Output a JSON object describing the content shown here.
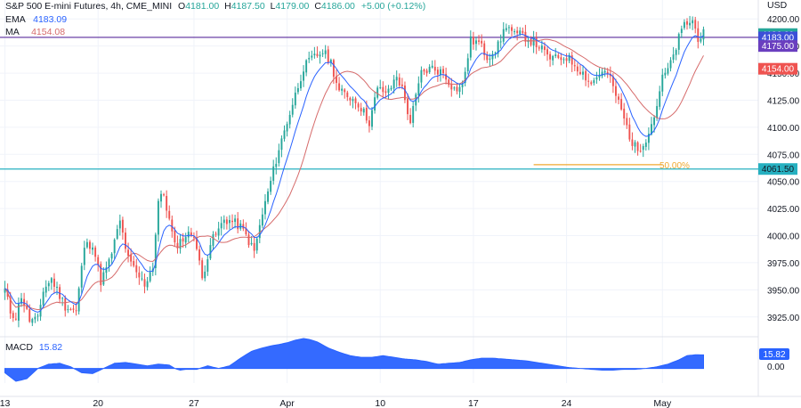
{
  "header": {
    "symbol": "S&P 500 E-mini Futures, 4h, CME_MINI",
    "ohlc": [
      {
        "label": "O",
        "value": "4181.00"
      },
      {
        "label": "H",
        "value": "4187.50"
      },
      {
        "label": "L",
        "value": "4179.00"
      },
      {
        "label": "C",
        "value": "4186.00"
      }
    ],
    "change": "+5.00 (+0.12%)",
    "ema_label": "EMA",
    "ema_value": "4183.09",
    "ma_label": "MA",
    "ma_value": "4154.08"
  },
  "currency": "USD",
  "macd": {
    "label": "MACD",
    "value": "15.82",
    "badge": "15.82",
    "zero_label": "0.00"
  },
  "price_badges": [
    {
      "text": "4186.00",
      "value": 4186,
      "color": "#26a69a"
    },
    {
      "text": "4183.00",
      "value": 4183,
      "color": "#3c4fd8"
    },
    {
      "text": "4175.00",
      "value": 4175,
      "color": "#6a3fbf"
    },
    {
      "text": "4154.00",
      "value": 4154,
      "color": "#ef5350"
    }
  ],
  "level_labels": [
    {
      "text": "4061.50",
      "value": 4061.5
    }
  ],
  "fib_label": "50.00%",
  "colors": {
    "up": "#26a69a",
    "down": "#ef5350",
    "ema": "#2962ff",
    "ma": "#d66b6b",
    "macd": "#2962ff",
    "fib": "#f0a830",
    "res": "#5b2c9c",
    "sup": "#26b0c0"
  },
  "chart_data": {
    "type": "candlestick",
    "title": "S&P 500 E-mini Futures, 4h, CME_MINI",
    "ylim": [
      3910,
      4215
    ],
    "yticks": [
      3925,
      3950,
      3975,
      4000,
      4025,
      4050,
      4075,
      4100,
      4125,
      4150,
      4175,
      4200
    ],
    "ytick_labels": [
      "3925.00",
      "3950.00",
      "3975.00",
      "4000.00",
      "4025.00",
      "4050.00",
      "4075.00",
      "4100.00",
      "4125.00",
      "4150.00",
      "4175.00",
      "4200.00"
    ],
    "xtick_labels": [
      "13",
      "20",
      "27",
      "Apr",
      "10",
      "17",
      "24",
      "May"
    ],
    "xtick_positions": [
      0,
      34,
      69,
      103,
      137,
      171,
      205,
      240
    ],
    "close_anchors": [
      [
        0,
        3950
      ],
      [
        2,
        3930
      ],
      [
        4,
        3925
      ],
      [
        6,
        3945
      ],
      [
        9,
        3922
      ],
      [
        12,
        3922
      ],
      [
        14,
        3950
      ],
      [
        17,
        3960
      ],
      [
        20,
        3945
      ],
      [
        22,
        3935
      ],
      [
        26,
        3930
      ],
      [
        29,
        3990
      ],
      [
        32,
        3993
      ],
      [
        35,
        3958
      ],
      [
        38,
        3975
      ],
      [
        42,
        4013
      ],
      [
        45,
        3978
      ],
      [
        48,
        3965
      ],
      [
        51,
        3955
      ],
      [
        54,
        3972
      ],
      [
        56,
        4032
      ],
      [
        58,
        4038
      ],
      [
        62,
        3990
      ],
      [
        66,
        4000
      ],
      [
        69,
        4002
      ],
      [
        72,
        3960
      ],
      [
        75,
        3993
      ],
      [
        78,
        4005
      ],
      [
        80,
        4015
      ],
      [
        83,
        4013
      ],
      [
        86,
        4008
      ],
      [
        88,
        4000
      ],
      [
        91,
        3985
      ],
      [
        94,
        4020
      ],
      [
        97,
        4050
      ],
      [
        100,
        4080
      ],
      [
        103,
        4105
      ],
      [
        106,
        4130
      ],
      [
        109,
        4155
      ],
      [
        112,
        4163
      ],
      [
        116,
        4170
      ],
      [
        119,
        4160
      ],
      [
        122,
        4133
      ],
      [
        126,
        4128
      ],
      [
        129,
        4122
      ],
      [
        133,
        4105
      ],
      [
        136,
        4135
      ],
      [
        140,
        4132
      ],
      [
        143,
        4148
      ],
      [
        145,
        4135
      ],
      [
        148,
        4105
      ],
      [
        152,
        4150
      ],
      [
        156,
        4155
      ],
      [
        160,
        4150
      ],
      [
        164,
        4135
      ],
      [
        167,
        4138
      ],
      [
        170,
        4180
      ],
      [
        173,
        4178
      ],
      [
        176,
        4165
      ],
      [
        180,
        4175
      ],
      [
        183,
        4195
      ],
      [
        186,
        4185
      ],
      [
        189,
        4185
      ],
      [
        192,
        4180
      ],
      [
        195,
        4175
      ],
      [
        198,
        4165
      ],
      [
        201,
        4163
      ],
      [
        205,
        4165
      ],
      [
        208,
        4158
      ],
      [
        211,
        4150
      ],
      [
        214,
        4140
      ],
      [
        217,
        4150
      ],
      [
        220,
        4150
      ],
      [
        223,
        4130
      ],
      [
        226,
        4108
      ],
      [
        229,
        4085
      ],
      [
        231,
        4079
      ],
      [
        234,
        4090
      ],
      [
        237,
        4110
      ],
      [
        240,
        4145
      ],
      [
        243,
        4158
      ],
      [
        246,
        4182
      ],
      [
        248,
        4195
      ],
      [
        251,
        4198
      ],
      [
        253,
        4183
      ],
      [
        255,
        4186
      ]
    ],
    "n_candles": 256,
    "ema_last": 4183.09,
    "ma_last": 4154.08,
    "horizontal_levels": [
      {
        "value": 4183,
        "label": "4183.00",
        "style": "resistance"
      },
      {
        "value": 4061.5,
        "label": "4061.50",
        "style": "support"
      }
    ],
    "fib_level": {
      "value": 4065.5,
      "label": "50.00%",
      "from_bar": 193,
      "to_bar": 240
    },
    "macd": {
      "value": 15.82,
      "ylim": [
        -15,
        35
      ],
      "zero": 0.0,
      "anchors": [
        [
          0,
          -5
        ],
        [
          4,
          -15
        ],
        [
          8,
          -12
        ],
        [
          12,
          0
        ],
        [
          16,
          5
        ],
        [
          20,
          6
        ],
        [
          24,
          2
        ],
        [
          28,
          -5
        ],
        [
          32,
          -6
        ],
        [
          36,
          0
        ],
        [
          40,
          6
        ],
        [
          44,
          7
        ],
        [
          48,
          5
        ],
        [
          52,
          3
        ],
        [
          56,
          5
        ],
        [
          60,
          4
        ],
        [
          62,
          0
        ],
        [
          64,
          -2
        ],
        [
          66,
          -1
        ],
        [
          70,
          -1
        ],
        [
          74,
          3
        ],
        [
          78,
          0
        ],
        [
          82,
          3
        ],
        [
          86,
          12
        ],
        [
          90,
          20
        ],
        [
          94,
          24
        ],
        [
          98,
          27
        ],
        [
          100,
          28
        ],
        [
          103,
          30
        ],
        [
          106,
          33
        ],
        [
          109,
          35
        ],
        [
          111,
          34
        ],
        [
          114,
          31
        ],
        [
          118,
          24
        ],
        [
          122,
          19
        ],
        [
          126,
          15
        ],
        [
          130,
          13
        ],
        [
          134,
          13
        ],
        [
          138,
          15
        ],
        [
          142,
          13
        ],
        [
          146,
          11
        ],
        [
          150,
          10
        ],
        [
          154,
          8
        ],
        [
          158,
          5
        ],
        [
          162,
          6
        ],
        [
          166,
          7
        ],
        [
          170,
          10
        ],
        [
          174,
          12
        ],
        [
          178,
          12
        ],
        [
          182,
          11
        ],
        [
          186,
          10
        ],
        [
          190,
          9
        ],
        [
          194,
          7
        ],
        [
          198,
          5
        ],
        [
          202,
          3
        ],
        [
          206,
          1
        ],
        [
          210,
          0
        ],
        [
          214,
          -1
        ],
        [
          218,
          -2
        ],
        [
          222,
          -2
        ],
        [
          226,
          -1
        ],
        [
          230,
          -1
        ],
        [
          234,
          0
        ],
        [
          238,
          2
        ],
        [
          242,
          5
        ],
        [
          246,
          10
        ],
        [
          249,
          15
        ],
        [
          252,
          16
        ],
        [
          255,
          15.8
        ]
      ]
    }
  }
}
